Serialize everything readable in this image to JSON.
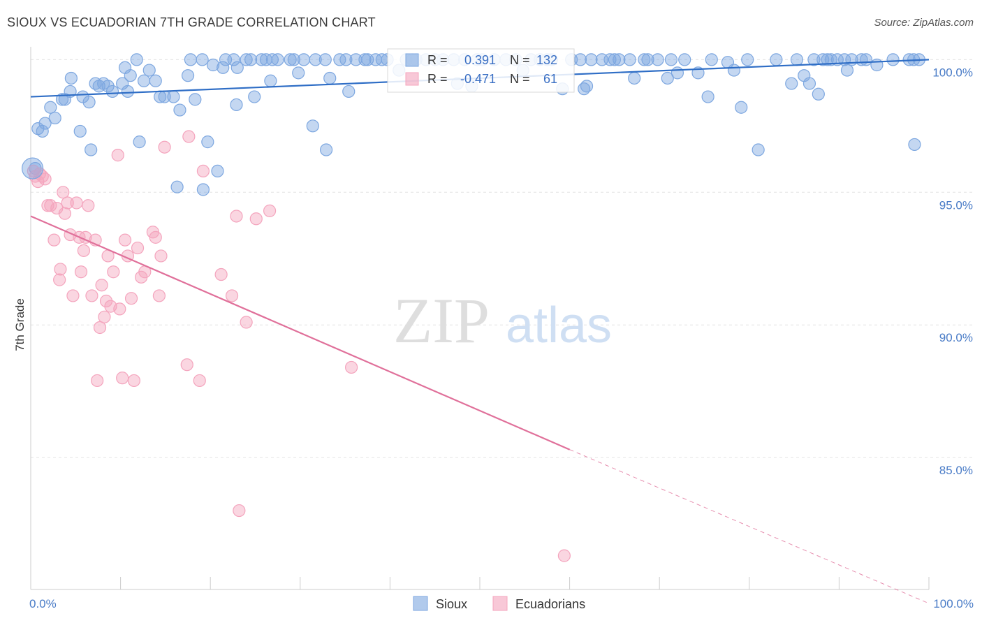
{
  "title": "SIOUX VS ECUADORIAN 7TH GRADE CORRELATION CHART",
  "source": "Source: ZipAtlas.com",
  "watermark": {
    "zip": "ZIP",
    "atlas": "atlas"
  },
  "chart_data": {
    "type": "scatter",
    "title": "SIOUX VS ECUADORIAN 7TH GRADE CORRELATION CHART",
    "xlabel": "",
    "ylabel": "7th Grade",
    "xlim": [
      0,
      100
    ],
    "ylim": [
      80.0,
      100.8
    ],
    "x_tick_labels": [
      {
        "value": 0,
        "label": "0.0%"
      },
      {
        "value": 100,
        "label": "100.0%"
      }
    ],
    "y_ticks": [
      {
        "value": 100,
        "label": "100.0%"
      },
      {
        "value": 95,
        "label": "95.0%"
      },
      {
        "value": 90,
        "label": "90.0%"
      },
      {
        "value": 85,
        "label": "85.0%"
      }
    ],
    "legend_position": "bottom-center",
    "stats_box": [
      {
        "series": "Sioux",
        "r_label": "R =",
        "r": "0.391",
        "n_label": "N =",
        "n": "132"
      },
      {
        "series": "Ecuadorians",
        "r_label": "R =",
        "r": "-0.471",
        "n_label": "N =",
        "n": "61"
      }
    ],
    "series": [
      {
        "name": "Sioux",
        "color": "#7da7e0",
        "line_color": "#2f6ec6",
        "trend": {
          "x": [
            0,
            100
          ],
          "y": [
            98.6,
            100.0
          ]
        },
        "points": [
          [
            0.5,
            95.9
          ],
          [
            0.8,
            97.4
          ],
          [
            1.3,
            97.3
          ],
          [
            1.6,
            97.6
          ],
          [
            2.2,
            98.2
          ],
          [
            2.7,
            97.8
          ],
          [
            3.5,
            98.5
          ],
          [
            3.8,
            98.5
          ],
          [
            4.4,
            98.8
          ],
          [
            4.5,
            99.3
          ],
          [
            5.5,
            97.3
          ],
          [
            5.8,
            98.6
          ],
          [
            6.5,
            98.4
          ],
          [
            6.7,
            96.6
          ],
          [
            7.2,
            99.1
          ],
          [
            7.6,
            99.0
          ],
          [
            8.1,
            99.1
          ],
          [
            8.6,
            99.0
          ],
          [
            9.1,
            98.8
          ],
          [
            10.2,
            99.1
          ],
          [
            10.5,
            99.7
          ],
          [
            10.8,
            98.8
          ],
          [
            11.1,
            99.4
          ],
          [
            11.8,
            100.0
          ],
          [
            12.1,
            96.9
          ],
          [
            12.6,
            99.2
          ],
          [
            13.2,
            99.6
          ],
          [
            13.9,
            99.2
          ],
          [
            14.4,
            98.6
          ],
          [
            14.9,
            98.6
          ],
          [
            15.9,
            98.6
          ],
          [
            16.3,
            95.2
          ],
          [
            16.6,
            98.1
          ],
          [
            17.5,
            99.4
          ],
          [
            17.8,
            100.0
          ],
          [
            18.3,
            98.5
          ],
          [
            19.1,
            100.0
          ],
          [
            19.2,
            95.1
          ],
          [
            19.7,
            96.9
          ],
          [
            20.3,
            99.8
          ],
          [
            20.8,
            95.8
          ],
          [
            21.4,
            99.7
          ],
          [
            21.7,
            100.0
          ],
          [
            22.6,
            100.0
          ],
          [
            22.9,
            98.3
          ],
          [
            23.0,
            99.7
          ],
          [
            24.0,
            100.0
          ],
          [
            24.5,
            100.0
          ],
          [
            24.9,
            98.6
          ],
          [
            25.7,
            100.0
          ],
          [
            26.2,
            100.0
          ],
          [
            26.7,
            99.2
          ],
          [
            26.9,
            100.0
          ],
          [
            27.5,
            100.0
          ],
          [
            28.9,
            100.0
          ],
          [
            29.3,
            100.0
          ],
          [
            29.8,
            99.5
          ],
          [
            30.4,
            100.0
          ],
          [
            31.4,
            97.5
          ],
          [
            31.7,
            100.0
          ],
          [
            32.8,
            100.0
          ],
          [
            32.9,
            96.6
          ],
          [
            33.3,
            99.3
          ],
          [
            34.4,
            100.0
          ],
          [
            35.1,
            100.0
          ],
          [
            35.4,
            98.8
          ],
          [
            36.2,
            100.0
          ],
          [
            37.2,
            100.0
          ],
          [
            37.5,
            100.0
          ],
          [
            38.4,
            100.0
          ],
          [
            39.1,
            100.0
          ],
          [
            39.7,
            100.0
          ],
          [
            41.0,
            99.6
          ],
          [
            41.8,
            100.0
          ],
          [
            42.5,
            100.0
          ],
          [
            42.9,
            100.0
          ],
          [
            44.0,
            100.0
          ],
          [
            45.0,
            100.0
          ],
          [
            45.9,
            100.0
          ],
          [
            47.1,
            100.0
          ],
          [
            47.5,
            99.1
          ],
          [
            48.3,
            100.0
          ],
          [
            49.1,
            99.0
          ],
          [
            49.7,
            100.0
          ],
          [
            50.3,
            100.0
          ],
          [
            51.6,
            100.0
          ],
          [
            52.9,
            100.0
          ],
          [
            54.0,
            100.0
          ],
          [
            54.8,
            99.6
          ],
          [
            55.7,
            100.0
          ],
          [
            56.7,
            100.0
          ],
          [
            57.5,
            100.0
          ],
          [
            58.0,
            100.0
          ],
          [
            59.2,
            98.9
          ],
          [
            60.2,
            100.0
          ],
          [
            61.2,
            100.0
          ],
          [
            61.6,
            98.9
          ],
          [
            61.9,
            99.0
          ],
          [
            62.4,
            100.0
          ],
          [
            63.6,
            100.0
          ],
          [
            64.5,
            100.0
          ],
          [
            65.0,
            100.0
          ],
          [
            65.5,
            100.0
          ],
          [
            66.7,
            100.0
          ],
          [
            67.2,
            99.3
          ],
          [
            68.3,
            100.0
          ],
          [
            68.7,
            100.0
          ],
          [
            69.8,
            100.0
          ],
          [
            70.9,
            99.3
          ],
          [
            71.3,
            100.0
          ],
          [
            72.0,
            99.5
          ],
          [
            72.8,
            100.0
          ],
          [
            74.3,
            99.5
          ],
          [
            75.4,
            98.6
          ],
          [
            75.8,
            100.0
          ],
          [
            77.6,
            99.9
          ],
          [
            78.3,
            99.6
          ],
          [
            79.1,
            98.2
          ],
          [
            79.8,
            100.0
          ],
          [
            81.0,
            96.6
          ],
          [
            83.0,
            100.0
          ],
          [
            84.7,
            99.1
          ],
          [
            85.3,
            100.0
          ],
          [
            86.1,
            99.4
          ],
          [
            86.7,
            99.1
          ],
          [
            87.2,
            100.0
          ],
          [
            87.7,
            98.7
          ],
          [
            88.2,
            100.0
          ],
          [
            88.7,
            100.0
          ],
          [
            89.1,
            100.0
          ],
          [
            89.8,
            100.0
          ],
          [
            90.6,
            100.0
          ],
          [
            90.9,
            99.6
          ],
          [
            91.4,
            100.0
          ],
          [
            92.5,
            100.0
          ],
          [
            93.0,
            100.0
          ],
          [
            94.2,
            99.8
          ],
          [
            96.0,
            100.0
          ],
          [
            97.8,
            100.0
          ],
          [
            98.3,
            100.0
          ],
          [
            98.9,
            100.0
          ],
          [
            98.4,
            96.8
          ]
        ]
      },
      {
        "name": "Ecuadorians",
        "color": "#f4a4bd",
        "line_color": "#e0709a",
        "trend": {
          "x": [
            0,
            60
          ],
          "y": [
            94.1,
            85.3
          ]
        },
        "trend_dashed": {
          "x": [
            60,
            100
          ],
          "y": [
            85.3,
            79.5
          ]
        },
        "points": [
          [
            0.3,
            95.8
          ],
          [
            0.5,
            95.6
          ],
          [
            0.8,
            95.4
          ],
          [
            1.0,
            95.7
          ],
          [
            1.3,
            95.6
          ],
          [
            1.6,
            95.5
          ],
          [
            1.9,
            94.5
          ],
          [
            2.2,
            94.5
          ],
          [
            2.6,
            93.2
          ],
          [
            2.9,
            94.4
          ],
          [
            3.2,
            91.7
          ],
          [
            3.3,
            92.1
          ],
          [
            3.6,
            95.0
          ],
          [
            3.8,
            94.2
          ],
          [
            4.1,
            94.6
          ],
          [
            4.4,
            93.4
          ],
          [
            4.7,
            91.1
          ],
          [
            5.1,
            94.6
          ],
          [
            5.4,
            93.3
          ],
          [
            5.6,
            92.0
          ],
          [
            5.9,
            92.8
          ],
          [
            6.1,
            93.3
          ],
          [
            6.4,
            94.5
          ],
          [
            6.8,
            91.1
          ],
          [
            7.2,
            93.2
          ],
          [
            7.4,
            87.9
          ],
          [
            7.7,
            89.9
          ],
          [
            7.9,
            91.5
          ],
          [
            8.2,
            90.3
          ],
          [
            8.4,
            90.9
          ],
          [
            8.6,
            92.6
          ],
          [
            8.9,
            90.7
          ],
          [
            9.2,
            92.0
          ],
          [
            9.7,
            96.4
          ],
          [
            9.9,
            90.6
          ],
          [
            10.2,
            88.0
          ],
          [
            10.5,
            93.2
          ],
          [
            10.8,
            92.6
          ],
          [
            11.2,
            91.0
          ],
          [
            11.5,
            87.9
          ],
          [
            11.9,
            92.9
          ],
          [
            12.3,
            91.8
          ],
          [
            12.7,
            92.0
          ],
          [
            13.6,
            93.5
          ],
          [
            13.9,
            93.3
          ],
          [
            14.3,
            91.1
          ],
          [
            14.5,
            92.6
          ],
          [
            14.9,
            96.7
          ],
          [
            17.4,
            88.5
          ],
          [
            17.6,
            97.1
          ],
          [
            18.8,
            87.9
          ],
          [
            19.2,
            95.8
          ],
          [
            21.2,
            91.9
          ],
          [
            22.4,
            91.1
          ],
          [
            22.9,
            94.1
          ],
          [
            23.2,
            83.0
          ],
          [
            24.0,
            90.1
          ],
          [
            25.1,
            94.0
          ],
          [
            26.6,
            94.3
          ],
          [
            35.7,
            88.4
          ],
          [
            59.4,
            81.3
          ]
        ]
      }
    ]
  }
}
